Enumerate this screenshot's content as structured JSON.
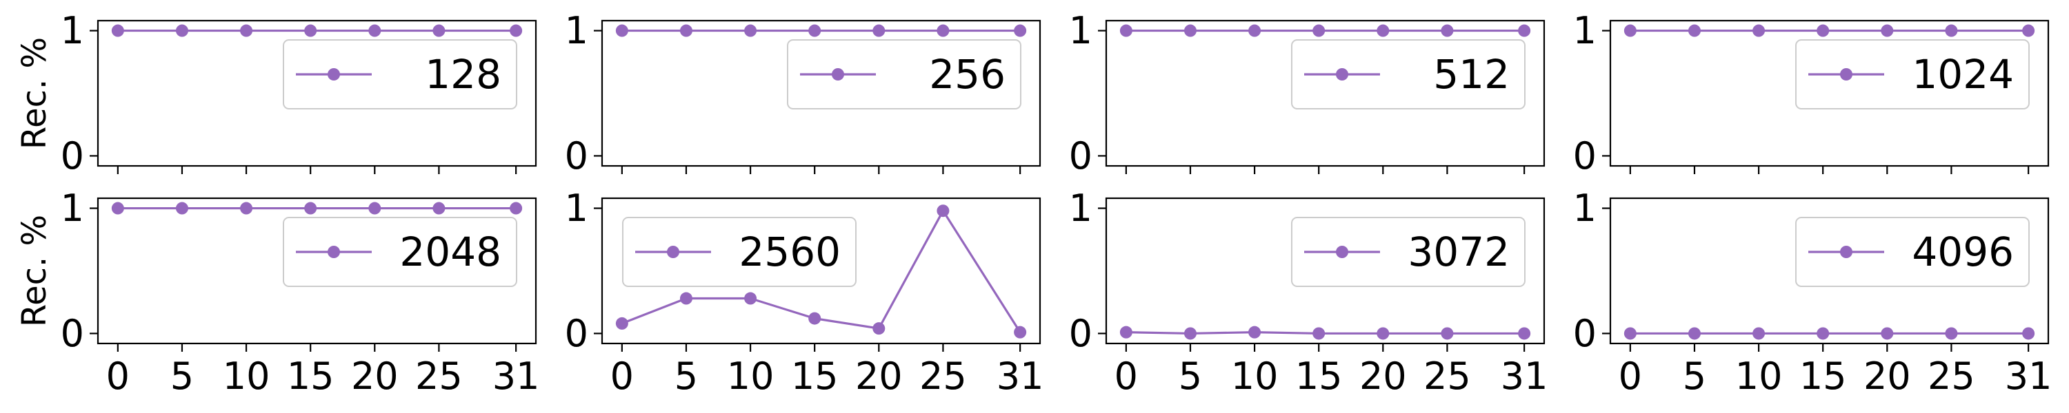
{
  "colors": {
    "series": "#9467bd",
    "axes": "#000000",
    "legend_border": "#cccccc",
    "background": "#ffffff"
  },
  "chart_data": [
    {
      "type": "line",
      "ylabel": "Rec. %",
      "legend": "128",
      "legend_position": "right",
      "x": [
        0,
        5,
        10,
        15,
        20,
        25,
        31
      ],
      "y": [
        1,
        1,
        1,
        1,
        1,
        1,
        1
      ],
      "xticks": [
        "0",
        "5",
        "10",
        "15",
        "20",
        "25",
        "31"
      ],
      "yticks": [
        "0",
        "1"
      ],
      "ylim": [
        -0.08,
        1.08
      ],
      "grid": false
    },
    {
      "type": "line",
      "ylabel": "",
      "legend": "256",
      "legend_position": "right",
      "x": [
        0,
        5,
        10,
        15,
        20,
        25,
        31
      ],
      "y": [
        1,
        1,
        1,
        1,
        1,
        1,
        1
      ],
      "xticks": [
        "0",
        "5",
        "10",
        "15",
        "20",
        "25",
        "31"
      ],
      "yticks": [
        "0",
        "1"
      ],
      "ylim": [
        -0.08,
        1.08
      ],
      "grid": false
    },
    {
      "type": "line",
      "ylabel": "",
      "legend": "512",
      "legend_position": "right",
      "x": [
        0,
        5,
        10,
        15,
        20,
        25,
        31
      ],
      "y": [
        1,
        1,
        1,
        1,
        1,
        1,
        1
      ],
      "xticks": [
        "0",
        "5",
        "10",
        "15",
        "20",
        "25",
        "31"
      ],
      "yticks": [
        "0",
        "1"
      ],
      "ylim": [
        -0.08,
        1.08
      ],
      "grid": false
    },
    {
      "type": "line",
      "ylabel": "",
      "legend": "1024",
      "legend_position": "right",
      "x": [
        0,
        5,
        10,
        15,
        20,
        25,
        31
      ],
      "y": [
        1,
        1,
        1,
        1,
        1,
        1,
        1
      ],
      "xticks": [
        "0",
        "5",
        "10",
        "15",
        "20",
        "25",
        "31"
      ],
      "yticks": [
        "0",
        "1"
      ],
      "ylim": [
        -0.08,
        1.08
      ],
      "grid": false
    },
    {
      "type": "line",
      "ylabel": "Rec. %",
      "legend": "2048",
      "legend_position": "right",
      "x": [
        0,
        5,
        10,
        15,
        20,
        25,
        31
      ],
      "y": [
        1,
        1,
        1,
        1,
        1,
        1,
        1
      ],
      "xticks": [
        "0",
        "5",
        "10",
        "15",
        "20",
        "25",
        "31"
      ],
      "yticks": [
        "0",
        "1"
      ],
      "ylim": [
        -0.08,
        1.08
      ],
      "grid": false
    },
    {
      "type": "line",
      "ylabel": "",
      "legend": "2560",
      "legend_position": "left",
      "x": [
        0,
        5,
        10,
        15,
        20,
        25,
        31
      ],
      "y": [
        0.08,
        0.28,
        0.28,
        0.12,
        0.04,
        0.98,
        0.01
      ],
      "xticks": [
        "0",
        "5",
        "10",
        "15",
        "20",
        "25",
        "31"
      ],
      "yticks": [
        "0",
        "1"
      ],
      "ylim": [
        -0.08,
        1.08
      ],
      "grid": false
    },
    {
      "type": "line",
      "ylabel": "",
      "legend": "3072",
      "legend_position": "right",
      "x": [
        0,
        5,
        10,
        15,
        20,
        25,
        31
      ],
      "y": [
        0.01,
        0.0,
        0.01,
        0.0,
        0.0,
        0.0,
        0.0
      ],
      "xticks": [
        "0",
        "5",
        "10",
        "15",
        "20",
        "25",
        "31"
      ],
      "yticks": [
        "0",
        "1"
      ],
      "ylim": [
        -0.08,
        1.08
      ],
      "grid": false
    },
    {
      "type": "line",
      "ylabel": "",
      "legend": "4096",
      "legend_position": "right",
      "x": [
        0,
        5,
        10,
        15,
        20,
        25,
        31
      ],
      "y": [
        0,
        0,
        0,
        0,
        0,
        0,
        0
      ],
      "xticks": [
        "0",
        "5",
        "10",
        "15",
        "20",
        "25",
        "31"
      ],
      "yticks": [
        "0",
        "1"
      ],
      "ylim": [
        -0.08,
        1.08
      ],
      "grid": false
    }
  ]
}
